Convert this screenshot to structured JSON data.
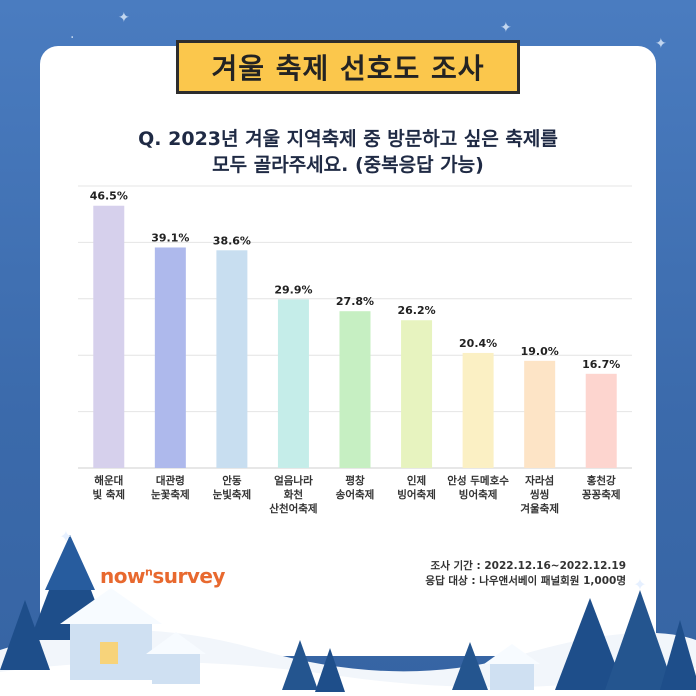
{
  "title": "겨울 축제 선호도 조사",
  "question_line1": "Q. 2023년 겨울 지역축제 중 방문하고 싶은 축제를",
  "question_line2": "모두 골라주세요. (중복응답 가능)",
  "logo": {
    "part1": "now",
    "sup": "n",
    "part2": "survey"
  },
  "meta": {
    "period": "조사 기간 : 2022.12.16~2022.12.19",
    "target": "응답 대상 : 나우앤서베이 패널회원 1,000명"
  },
  "colors": {
    "background": "#3b6aab",
    "badge": "#fbc74c",
    "logo": "#e8692f"
  },
  "chart_data": {
    "type": "bar",
    "categories": [
      [
        "해운대",
        "빛 축제"
      ],
      [
        "대관령",
        "눈꽃축제"
      ],
      [
        "안동",
        "눈빛축제"
      ],
      [
        "얼음나라",
        "화천",
        "산천어축제"
      ],
      [
        "평창",
        "송어축제"
      ],
      [
        "인제",
        "빙어축제"
      ],
      [
        "안성 두메호수",
        "빙어축제"
      ],
      [
        "자라섬",
        "씽씽",
        "겨울축제"
      ],
      [
        "홍천강",
        "꽁꽁축제"
      ]
    ],
    "values": [
      46.5,
      39.1,
      38.6,
      29.9,
      27.8,
      26.2,
      20.4,
      19.0,
      16.7
    ],
    "value_labels": [
      "46.5%",
      "39.1%",
      "38.6%",
      "29.9%",
      "27.8%",
      "26.2%",
      "20.4%",
      "19.0%",
      "16.7%"
    ],
    "bar_colors": [
      "#d6d0ec",
      "#aeb9ec",
      "#c8def0",
      "#c5ede9",
      "#c6efc2",
      "#e7f3bf",
      "#fbf0c4",
      "#fde4c6",
      "#fdd5cf"
    ],
    "ylim": [
      0,
      50
    ],
    "grid": true,
    "xlabel": "",
    "ylabel": ""
  }
}
